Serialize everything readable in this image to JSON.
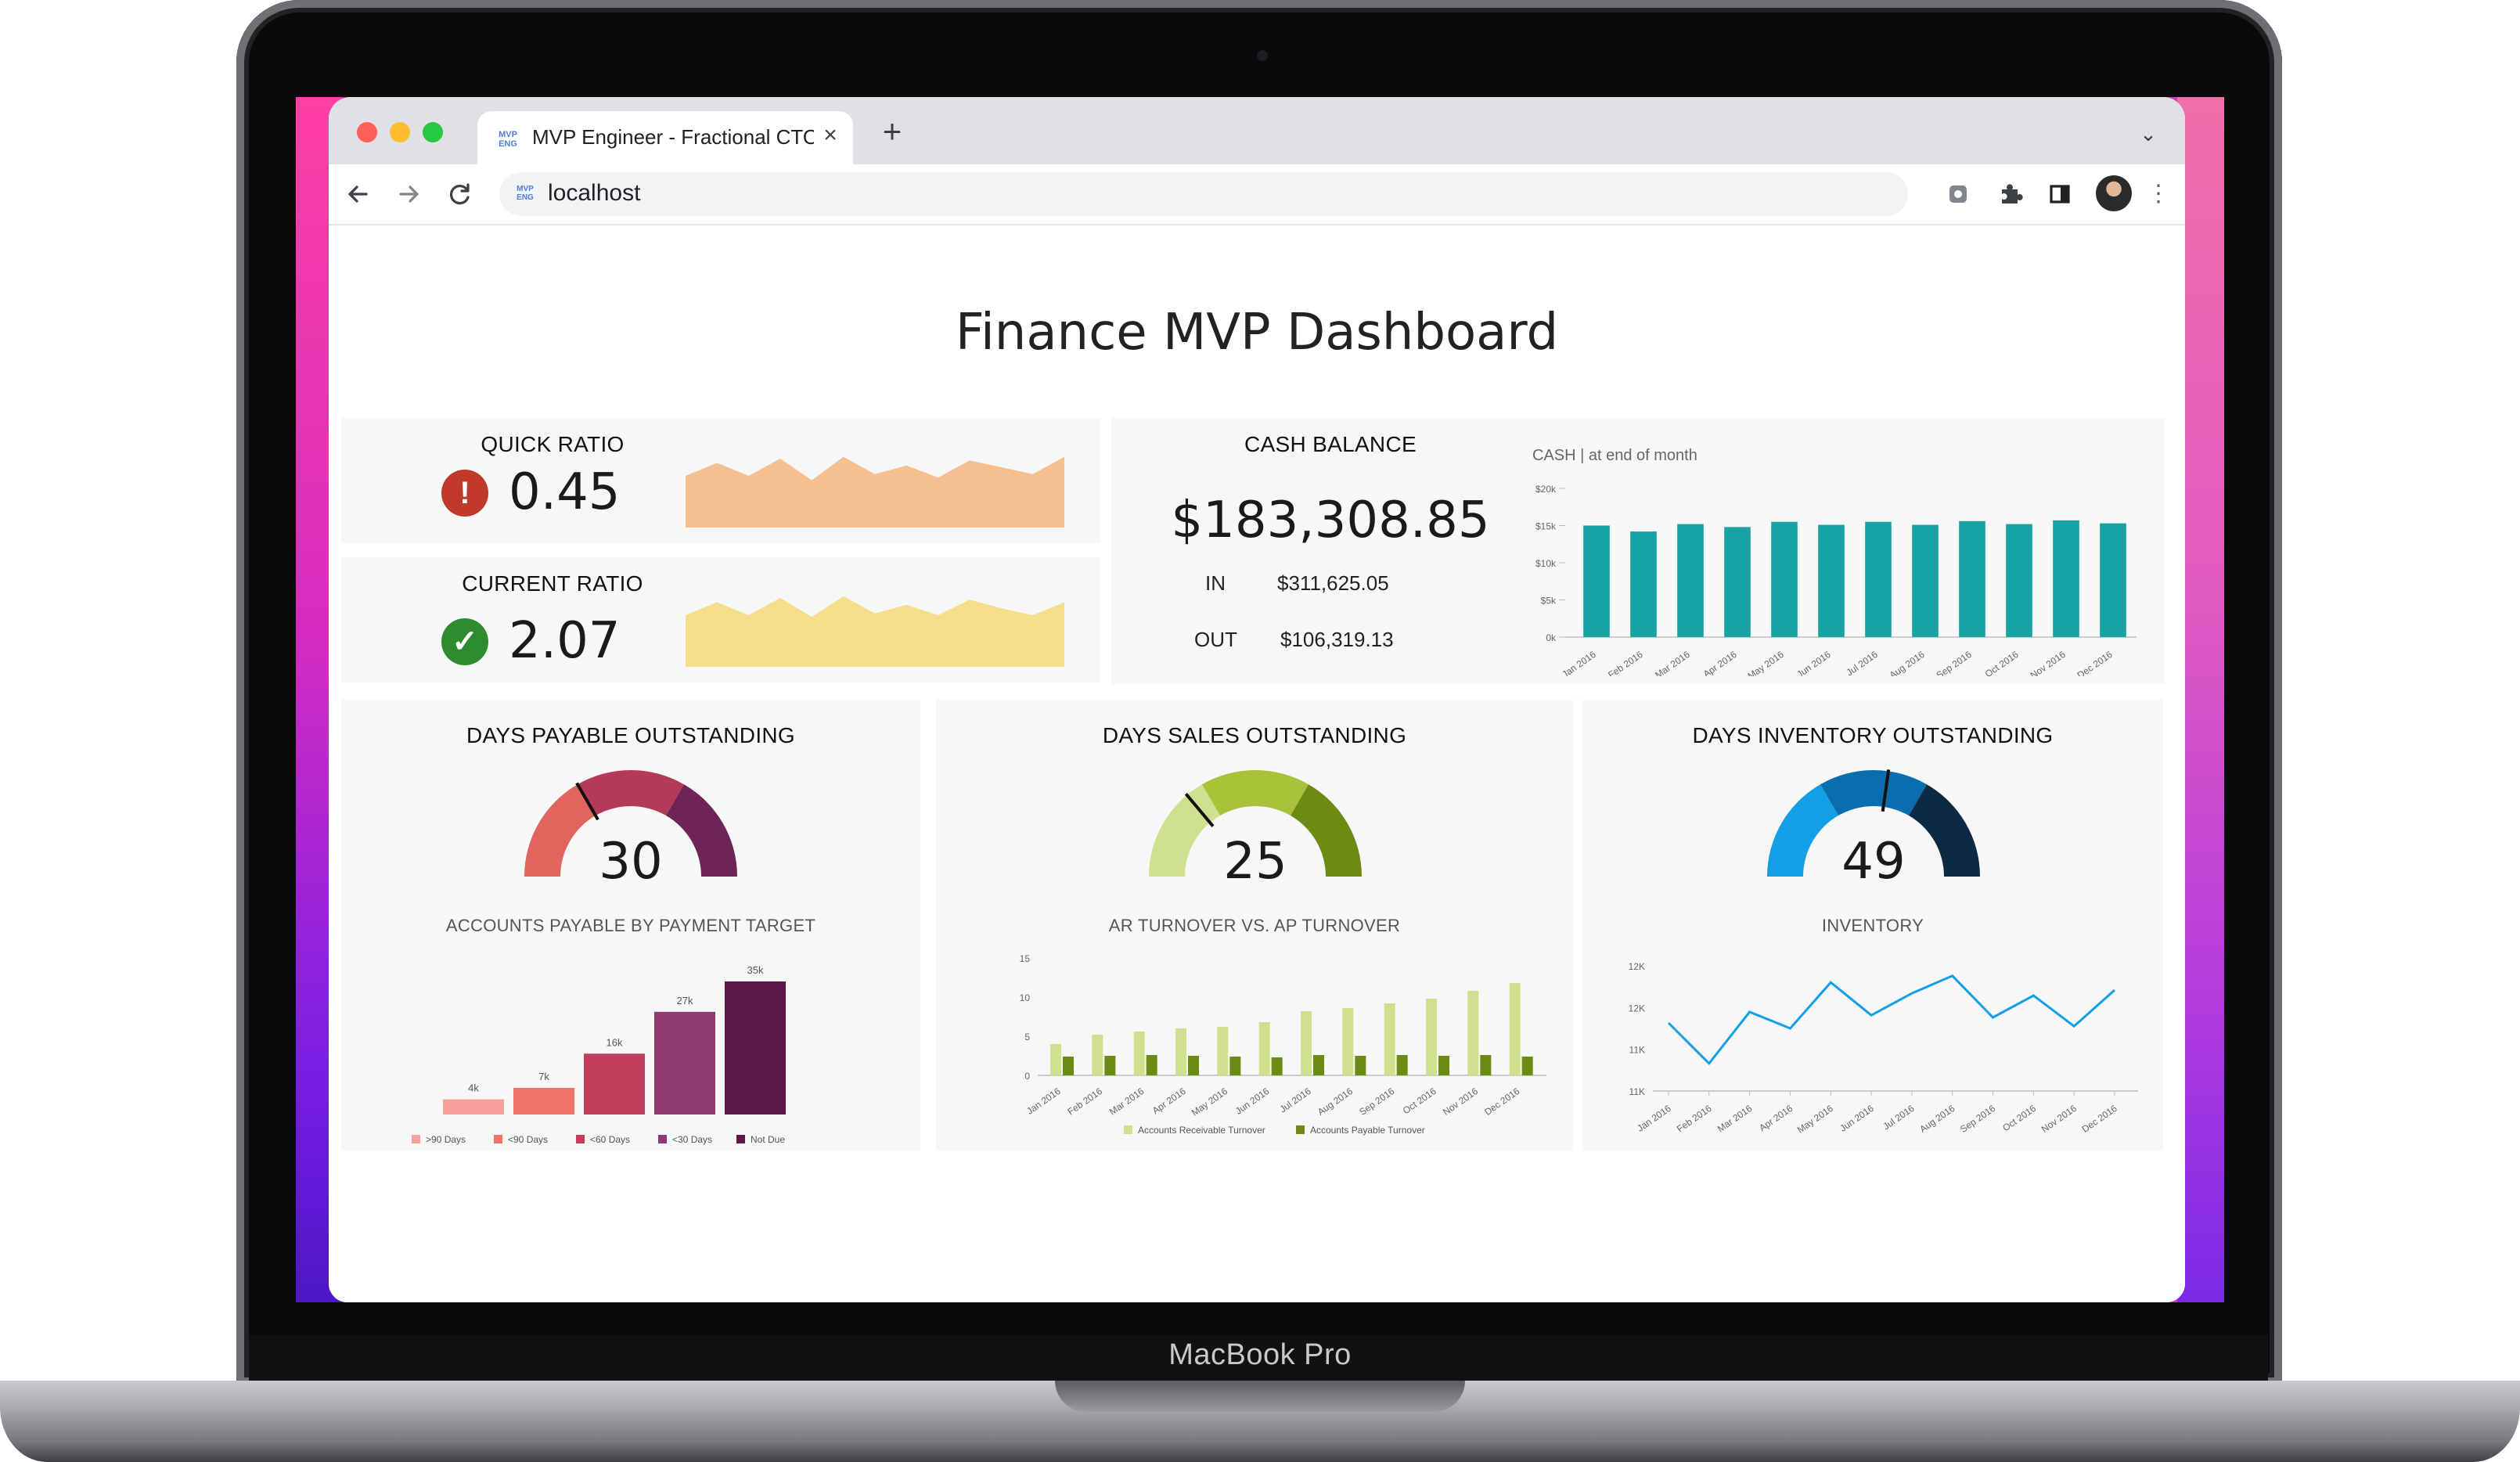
{
  "device": {
    "brand": "MacBook Pro"
  },
  "browser": {
    "tab_title": "MVP Engineer - Fractional CTO",
    "favicon_text": "MVP ENG",
    "url": "localhost",
    "icons": {
      "back": "arrow-left-icon",
      "forward": "arrow-right-icon",
      "reload": "reload-icon",
      "extension": "extension-icon",
      "puzzle": "puzzle-icon",
      "side_panel": "side-panel-icon",
      "menu": "more-vertical-icon",
      "new_tab": "plus-icon",
      "tab_list": "chevron-down-icon"
    }
  },
  "dashboard": {
    "title": "Finance MVP Dashboard",
    "quick_ratio": {
      "label": "QUICK RATIO",
      "value": "0.45",
      "status": "warning",
      "status_color": "#c0392b",
      "sparkline_color": "#f5bf8f"
    },
    "current_ratio": {
      "label": "CURRENT RATIO",
      "value": "2.07",
      "status": "ok",
      "status_color": "#2e8b2e",
      "sparkline_color": "#f6df8a"
    },
    "cash_balance": {
      "label": "CASH BALANCE",
      "value": "$183,308.85",
      "in_label": "IN",
      "in_value": "$311,625.05",
      "out_label": "OUT",
      "out_value": "$106,319.13"
    },
    "dpo": {
      "label": "DAYS PAYABLE OUTSTANDING",
      "value": "30",
      "chart_title": "ACCOUNTS PAYABLE BY PAYMENT TARGET"
    },
    "dso": {
      "label": "DAYS SALES OUTSTANDING",
      "value": "25",
      "chart_title": "AR TURNOVER VS. AP TURNOVER"
    },
    "dio": {
      "label": "DAYS INVENTORY OUTSTANDING",
      "value": "49",
      "chart_title": "INVENTORY"
    }
  },
  "chart_data": [
    {
      "id": "quick-ratio-sparkline",
      "type": "area",
      "values": [
        0.6,
        0.75,
        0.6,
        0.8,
        0.55,
        0.82,
        0.62,
        0.72,
        0.58,
        0.78,
        0.7,
        0.62,
        0.82
      ],
      "color": "#f5bf8f"
    },
    {
      "id": "current-ratio-sparkline",
      "type": "area",
      "values": [
        0.6,
        0.75,
        0.6,
        0.8,
        0.58,
        0.82,
        0.62,
        0.72,
        0.6,
        0.78,
        0.68,
        0.6,
        0.75
      ],
      "color": "#f6df8a"
    },
    {
      "id": "cash-chart",
      "type": "bar",
      "title": "CASH | at end of month",
      "categories": [
        "Jan 2016",
        "Feb 2016",
        "Mar 2016",
        "Apr 2016",
        "May 2016",
        "Jun 2016",
        "Jul 2016",
        "Aug 2016",
        "Sep 2016",
        "Oct 2016",
        "Nov 2016",
        "Dec 2016"
      ],
      "y_ticks": [
        "$20k",
        "$15k",
        "$10k",
        "$5k",
        "0k"
      ],
      "ylim": [
        0,
        20000
      ],
      "values": [
        15000,
        14200,
        15200,
        14800,
        15500,
        15100,
        15500,
        15100,
        15600,
        15200,
        15700,
        15300
      ],
      "color": "#17a2a4"
    },
    {
      "id": "dpo-gauge",
      "type": "gauge",
      "value": 30,
      "range": [
        0,
        90
      ],
      "segments": [
        "#e0655d",
        "#b43a5a",
        "#6e2454"
      ]
    },
    {
      "id": "ap-by-target",
      "type": "bar",
      "categories": [
        ">90 Days",
        "<90 Days",
        "<60 Days",
        "<30 Days",
        "Not Due"
      ],
      "data_labels": [
        "4k",
        "7k",
        "16k",
        "27k",
        "35k"
      ],
      "values": [
        4000,
        7000,
        16000,
        27000,
        35000
      ],
      "colors": [
        "#f7a19a",
        "#ee7466",
        "#c23f5c",
        "#8f3a6e",
        "#5a1748"
      ]
    },
    {
      "id": "dso-gauge",
      "type": "gauge",
      "value": 25,
      "range": [
        0,
        90
      ],
      "segments": [
        "#cfe18e",
        "#a8c23a",
        "#6b8b13"
      ]
    },
    {
      "id": "ar-vs-ap",
      "type": "bar",
      "categories": [
        "Jan 2016",
        "Feb 2016",
        "Mar 2016",
        "Apr 2016",
        "May 2016",
        "Jun 2016",
        "Jul 2016",
        "Aug 2016",
        "Sep 2016",
        "Oct 2016",
        "Nov 2016",
        "Dec 2016"
      ],
      "y_ticks": [
        "15",
        "10",
        "5",
        "0"
      ],
      "ylim": [
        0,
        15
      ],
      "series": [
        {
          "name": "Accounts Receivable Turnover",
          "values": [
            4,
            5.2,
            5.6,
            6,
            6.2,
            6.8,
            8.2,
            8.6,
            9.2,
            9.8,
            10.8,
            11.8
          ],
          "color": "#cfe18e"
        },
        {
          "name": "Accounts Payable Turnover",
          "values": [
            2.4,
            2.5,
            2.6,
            2.5,
            2.4,
            2.3,
            2.6,
            2.5,
            2.6,
            2.5,
            2.6,
            2.4
          ],
          "color": "#6b8b13"
        }
      ]
    },
    {
      "id": "dio-gauge",
      "type": "gauge",
      "value": 49,
      "range": [
        0,
        90
      ],
      "segments": [
        "#139fe6",
        "#0a6eae",
        "#0d2a45"
      ]
    },
    {
      "id": "inventory-chart",
      "type": "line",
      "categories": [
        "Jan 2016",
        "Feb 2016",
        "Mar 2016",
        "Apr 2016",
        "May 2016",
        "Jun 2016",
        "Jul 2016",
        "Aug 2016",
        "Sep 2016",
        "Oct 2016",
        "Nov 2016",
        "Dec 2016"
      ],
      "y_ticks": [
        "12K",
        "12K",
        "11K",
        "11K"
      ],
      "values": [
        0.55,
        0.18,
        0.65,
        0.5,
        0.92,
        0.62,
        0.82,
        0.98,
        0.6,
        0.8,
        0.52,
        0.85
      ],
      "color": "#139fe6"
    }
  ]
}
